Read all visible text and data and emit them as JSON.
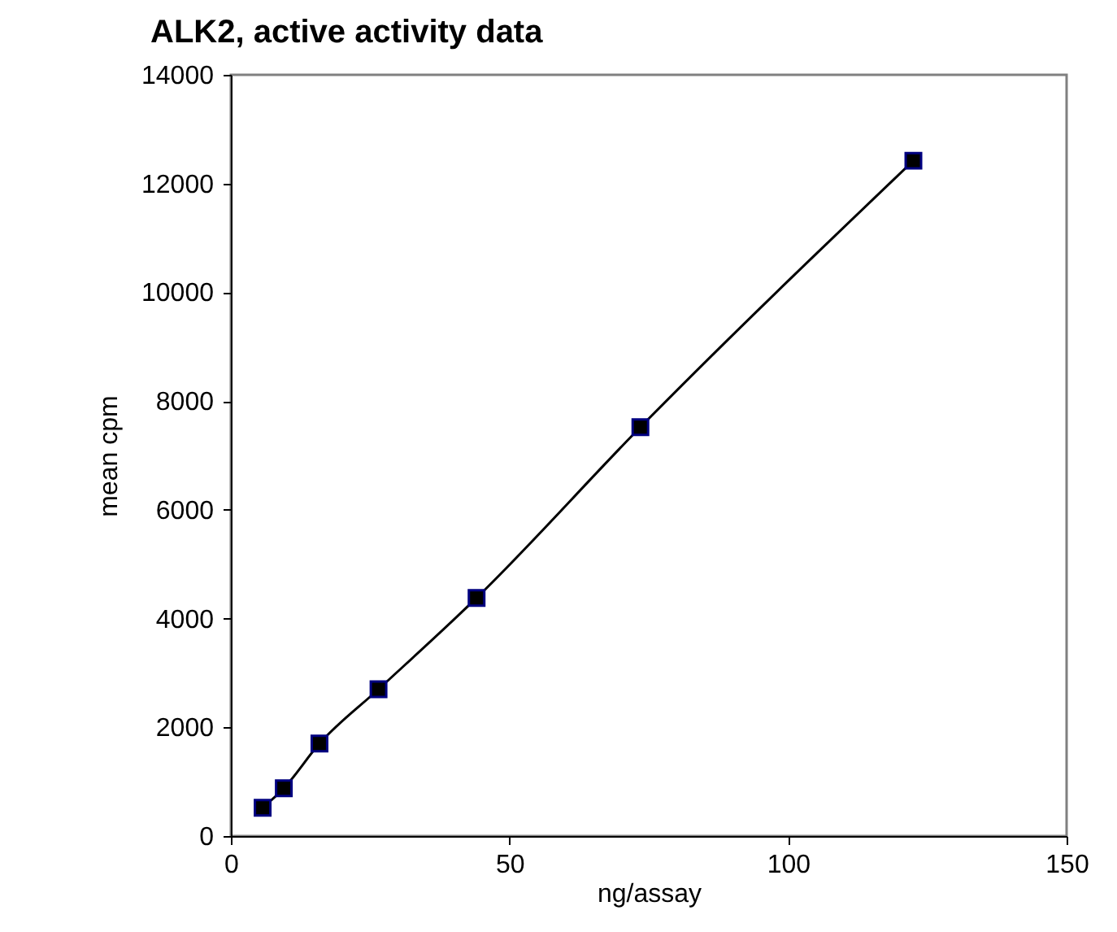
{
  "chart_data": {
    "type": "line",
    "title": "ALK2, active activity data",
    "xlabel": "ng/assay",
    "ylabel": "mean cpm",
    "x": [
      5.7,
      9.5,
      15.9,
      26.5,
      44.1,
      73.5,
      122.5
    ],
    "series": [
      {
        "color": "#000000",
        "values": [
          520,
          880,
          1700,
          2700,
          4380,
          7520,
          12420
        ]
      }
    ],
    "xlim": [
      0,
      150
    ],
    "xticks": [
      0,
      50,
      100,
      150
    ],
    "ylim": [
      0,
      14000
    ],
    "yticks": [
      0,
      2000,
      4000,
      6000,
      8000,
      10000,
      12000,
      14000
    ],
    "grid": false,
    "marker": "square",
    "line_style": "solid"
  }
}
